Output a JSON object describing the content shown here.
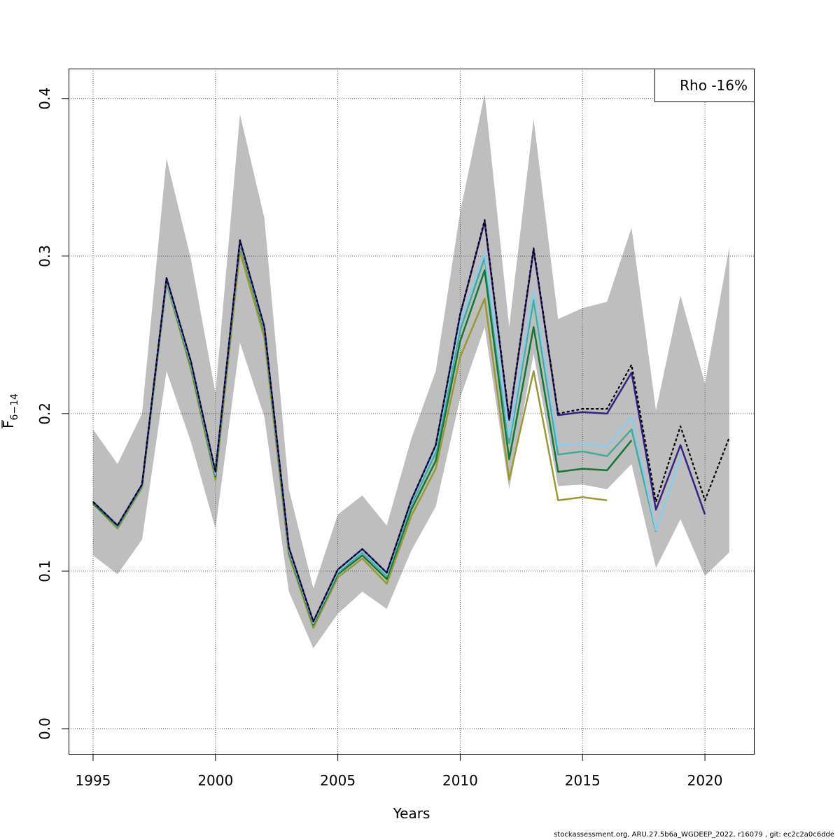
{
  "chart_data": {
    "type": "line",
    "title": "",
    "xlabel": "Years",
    "ylabel_main": "F",
    "ylabel_sub": "6−14",
    "xlim": [
      1994,
      2022
    ],
    "ylim": [
      -0.016,
      0.419
    ],
    "x_ticks": [
      1995,
      2000,
      2005,
      2010,
      2015,
      2020
    ],
    "y_ticks": [
      0.0,
      0.1,
      0.2,
      0.3,
      0.4
    ],
    "y_tick_labels": [
      "0.0",
      "0.1",
      "0.2",
      "0.3",
      "0.4"
    ],
    "grid": true,
    "legend": {
      "text": "Rho -16%",
      "placement": "top-right"
    },
    "confidence_band": {
      "color": "#bebebe",
      "x": [
        1995,
        1996,
        1997,
        1998,
        1999,
        2000,
        2001,
        2002,
        2003,
        2004,
        2005,
        2006,
        2007,
        2008,
        2009,
        2010,
        2011,
        2012,
        2013,
        2014,
        2015,
        2016,
        2017,
        2018,
        2019,
        2020,
        2021
      ],
      "upper": [
        0.19,
        0.168,
        0.2,
        0.362,
        0.298,
        0.213,
        0.39,
        0.324,
        0.152,
        0.089,
        0.136,
        0.148,
        0.129,
        0.184,
        0.227,
        0.328,
        0.403,
        0.255,
        0.387,
        0.26,
        0.267,
        0.271,
        0.318,
        0.202,
        0.275,
        0.219,
        0.306
      ],
      "lower": [
        0.11,
        0.098,
        0.12,
        0.227,
        0.182,
        0.127,
        0.245,
        0.198,
        0.087,
        0.051,
        0.073,
        0.087,
        0.076,
        0.113,
        0.141,
        0.21,
        0.255,
        0.152,
        0.238,
        0.154,
        0.155,
        0.152,
        0.168,
        0.102,
        0.133,
        0.097,
        0.112
      ]
    },
    "series": [
      {
        "color": "#000000",
        "dashed": true,
        "x": [
          1995,
          1996,
          1997,
          1998,
          1999,
          2000,
          2001,
          2002,
          2003,
          2004,
          2005,
          2006,
          2007,
          2008,
          2009,
          2010,
          2011,
          2012,
          2013,
          2014,
          2015,
          2016,
          2017,
          2018,
          2019,
          2020,
          2021
        ],
        "values": [
          0.144,
          0.129,
          0.155,
          0.286,
          0.233,
          0.163,
          0.31,
          0.255,
          0.115,
          0.068,
          0.101,
          0.114,
          0.099,
          0.145,
          0.18,
          0.263,
          0.323,
          0.197,
          0.305,
          0.2,
          0.203,
          0.203,
          0.231,
          0.144,
          0.192,
          0.145,
          0.185
        ]
      },
      {
        "color": "#332288",
        "dashed": false,
        "x": [
          1995,
          1996,
          1997,
          1998,
          1999,
          2000,
          2001,
          2002,
          2003,
          2004,
          2005,
          2006,
          2007,
          2008,
          2009,
          2010,
          2011,
          2012,
          2013,
          2014,
          2015,
          2016,
          2017,
          2018,
          2019,
          2020
        ],
        "values": [
          0.144,
          0.129,
          0.155,
          0.286,
          0.233,
          0.163,
          0.31,
          0.255,
          0.115,
          0.068,
          0.101,
          0.114,
          0.099,
          0.145,
          0.18,
          0.263,
          0.322,
          0.196,
          0.304,
          0.199,
          0.201,
          0.2,
          0.226,
          0.139,
          0.18,
          0.136
        ]
      },
      {
        "color": "#88ccee",
        "dashed": false,
        "x": [
          1995,
          1996,
          1997,
          1998,
          1999,
          2000,
          2001,
          2002,
          2003,
          2004,
          2005,
          2006,
          2007,
          2008,
          2009,
          2010,
          2011,
          2012,
          2013,
          2014,
          2015,
          2016,
          2017,
          2018,
          2019
        ],
        "values": [
          0.144,
          0.129,
          0.155,
          0.285,
          0.232,
          0.162,
          0.309,
          0.254,
          0.114,
          0.067,
          0.1,
          0.113,
          0.098,
          0.144,
          0.178,
          0.258,
          0.302,
          0.185,
          0.278,
          0.18,
          0.181,
          0.179,
          0.198,
          0.126,
          0.172
        ]
      },
      {
        "color": "#44aa99",
        "dashed": false,
        "x": [
          1995,
          1996,
          1997,
          1998,
          1999,
          2000,
          2001,
          2002,
          2003,
          2004,
          2005,
          2006,
          2007,
          2008,
          2009,
          2010,
          2011,
          2012,
          2013,
          2014,
          2015,
          2016,
          2017,
          2018
        ],
        "values": [
          0.144,
          0.128,
          0.154,
          0.284,
          0.231,
          0.161,
          0.309,
          0.253,
          0.113,
          0.067,
          0.099,
          0.112,
          0.097,
          0.142,
          0.175,
          0.253,
          0.299,
          0.181,
          0.272,
          0.174,
          0.176,
          0.173,
          0.19,
          0.125
        ]
      },
      {
        "color": "#117733",
        "dashed": false,
        "x": [
          1995,
          1996,
          1997,
          1998,
          1999,
          2000,
          2001,
          2002,
          2003,
          2004,
          2005,
          2006,
          2007,
          2008,
          2009,
          2010,
          2011,
          2012,
          2013,
          2014,
          2015,
          2016,
          2017
        ],
        "values": [
          0.143,
          0.128,
          0.154,
          0.284,
          0.23,
          0.16,
          0.308,
          0.252,
          0.112,
          0.066,
          0.098,
          0.11,
          0.095,
          0.139,
          0.17,
          0.246,
          0.291,
          0.171,
          0.255,
          0.163,
          0.165,
          0.164,
          0.183
        ]
      },
      {
        "color": "#999933",
        "dashed": false,
        "x": [
          1995,
          1996,
          1997,
          1998,
          1999,
          2000,
          2001,
          2002,
          2003,
          2004,
          2005,
          2006,
          2007,
          2008,
          2009,
          2010,
          2011,
          2012,
          2013,
          2014,
          2015,
          2016
        ],
        "values": [
          0.143,
          0.127,
          0.153,
          0.283,
          0.228,
          0.158,
          0.303,
          0.248,
          0.11,
          0.064,
          0.096,
          0.108,
          0.092,
          0.135,
          0.165,
          0.236,
          0.273,
          0.158,
          0.227,
          0.145,
          0.147,
          0.145
        ]
      }
    ]
  },
  "footer": {
    "text": "stockassessment.org, ARU.27.5b6a_WGDEEP_2022, r16079 , git: ec2c2a0c6dde"
  }
}
